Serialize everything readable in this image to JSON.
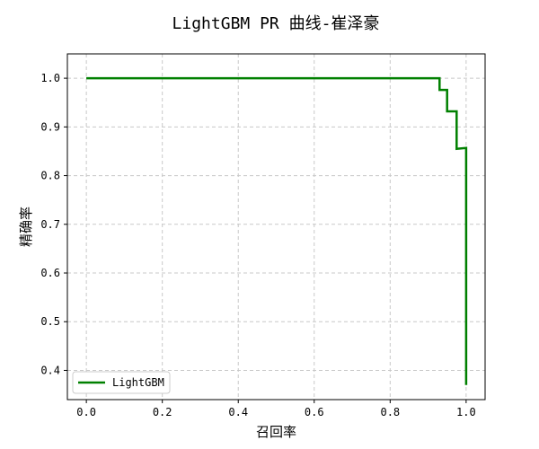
{
  "chart_data": {
    "type": "line",
    "title": "LightGBM PR 曲线-崔泽豪",
    "xlabel": "召回率",
    "ylabel": "精确率",
    "xlim": [
      -0.05,
      1.05
    ],
    "ylim": [
      0.34,
      1.05
    ],
    "xticks": [
      0.0,
      0.2,
      0.4,
      0.6,
      0.8,
      1.0
    ],
    "xtick_labels": [
      "0.0",
      "0.2",
      "0.4",
      "0.6",
      "0.8",
      "1.0"
    ],
    "yticks": [
      0.4,
      0.5,
      0.6,
      0.7,
      0.8,
      0.9,
      1.0
    ],
    "ytick_labels": [
      "0.4",
      "0.5",
      "0.6",
      "0.7",
      "0.8",
      "0.9",
      "1.0"
    ],
    "grid": true,
    "legend_position": "lower-left",
    "series": [
      {
        "name": "LightGBM",
        "color": "#008000",
        "step": true,
        "x": [
          0.0,
          0.93,
          0.93,
          0.95,
          0.95,
          0.975,
          0.975,
          1.0,
          1.0
        ],
        "y": [
          1.0,
          1.0,
          0.976,
          0.976,
          0.932,
          0.932,
          0.855,
          0.857,
          0.37
        ]
      }
    ]
  }
}
